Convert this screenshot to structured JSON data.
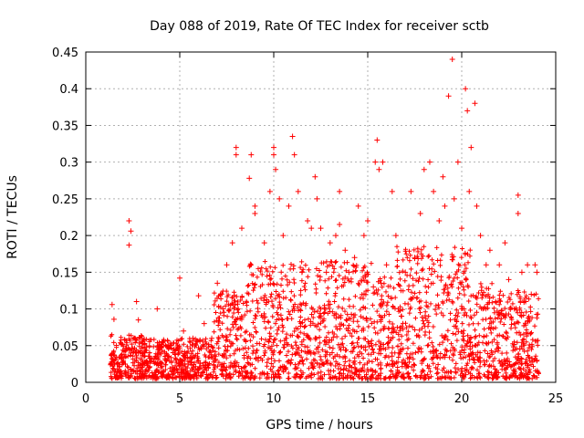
{
  "chart_data": {
    "type": "scatter",
    "title": "Day 088 of 2019, Rate Of TEC Index for receiver sctb",
    "xlabel": "GPS time / hours",
    "ylabel": "ROTI / TECUs",
    "xlim": [
      0,
      25
    ],
    "ylim": [
      0,
      0.45
    ],
    "x_ticks": [
      "0",
      "5",
      "10",
      "15",
      "20",
      "25"
    ],
    "y_ticks": [
      "0",
      "0.05",
      "0.1",
      "0.15",
      "0.2",
      "0.25",
      "0.3",
      "0.35",
      "0.4",
      "0.45"
    ],
    "grid": true,
    "marker": "+",
    "colors": {
      "series": "#ff0000",
      "grid": "#b0b0b0",
      "axis": "#000000"
    },
    "series": [
      {
        "name": "ROTI",
        "x": [
          1.4,
          1.4,
          1.5,
          1.5,
          2.3,
          2.3,
          2.4,
          2.4,
          2.7,
          2.8,
          2.9,
          3.0,
          3.8,
          3.9,
          4.0,
          4.5,
          4.8,
          5.0,
          5.2,
          5.4,
          5.7,
          6.0,
          6.3,
          6.7,
          7.0,
          7.3,
          7.5,
          7.8,
          8.0,
          8.0,
          8.3,
          8.7,
          8.8,
          9.0,
          9.0,
          9.5,
          9.8,
          10.0,
          10.0,
          10.1,
          10.3,
          10.5,
          10.8,
          11.0,
          11.1,
          11.3,
          11.5,
          11.8,
          12.0,
          12.2,
          12.3,
          12.5,
          12.8,
          13.0,
          13.3,
          13.5,
          13.5,
          13.8,
          14.0,
          14.3,
          14.5,
          14.8,
          15.0,
          15.3,
          15.4,
          15.5,
          15.6,
          15.8,
          16.0,
          16.3,
          16.5,
          16.8,
          17.0,
          17.3,
          17.5,
          17.8,
          18.0,
          18.3,
          18.5,
          18.8,
          19.0,
          19.1,
          19.3,
          19.5,
          19.6,
          19.8,
          20.0,
          20.2,
          20.3,
          20.4,
          20.5,
          20.7,
          20.8,
          21.0,
          21.3,
          21.5,
          21.8,
          22.0,
          22.3,
          22.5,
          22.8,
          23.0,
          23.0,
          23.2,
          23.4,
          23.5,
          23.7,
          23.9,
          24.0,
          24.0
        ],
        "y": [
          0.106,
          0.025,
          0.086,
          0.018,
          0.22,
          0.187,
          0.206,
          0.04,
          0.11,
          0.085,
          0.06,
          0.03,
          0.1,
          0.045,
          0.02,
          0.05,
          0.03,
          0.142,
          0.07,
          0.04,
          0.06,
          0.118,
          0.08,
          0.06,
          0.135,
          0.1,
          0.16,
          0.19,
          0.32,
          0.31,
          0.21,
          0.278,
          0.31,
          0.23,
          0.24,
          0.19,
          0.26,
          0.32,
          0.31,
          0.29,
          0.25,
          0.2,
          0.24,
          0.335,
          0.31,
          0.26,
          0.15,
          0.22,
          0.21,
          0.28,
          0.25,
          0.21,
          0.15,
          0.19,
          0.2,
          0.26,
          0.215,
          0.18,
          0.15,
          0.17,
          0.24,
          0.2,
          0.22,
          0.13,
          0.3,
          0.33,
          0.29,
          0.3,
          0.16,
          0.26,
          0.2,
          0.09,
          0.15,
          0.26,
          0.17,
          0.23,
          0.29,
          0.3,
          0.26,
          0.22,
          0.28,
          0.24,
          0.39,
          0.44,
          0.25,
          0.3,
          0.21,
          0.4,
          0.37,
          0.26,
          0.32,
          0.38,
          0.24,
          0.2,
          0.16,
          0.18,
          0.11,
          0.16,
          0.19,
          0.14,
          0.1,
          0.255,
          0.23,
          0.15,
          0.11,
          0.16,
          0.12,
          0.16,
          0.15,
          0.03
        ]
      }
    ]
  }
}
